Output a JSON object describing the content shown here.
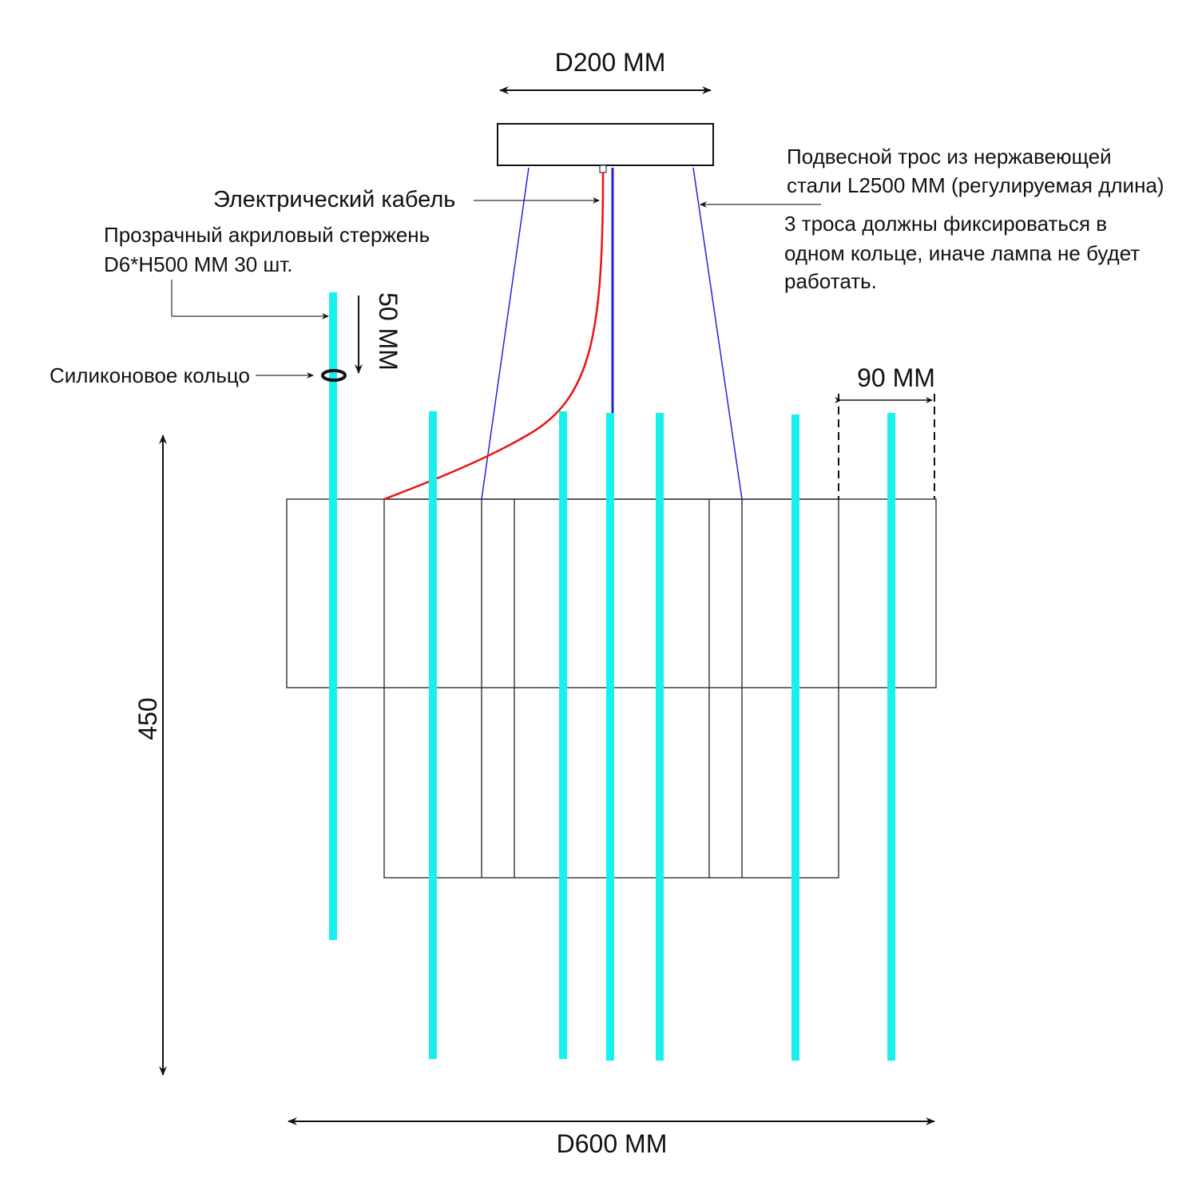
{
  "labels": {
    "top_diameter": "D200 MM",
    "cable": "Электрический  кабель",
    "rod_line1": "Прозрачный акриловый стержень",
    "rod_line2": "D6*H500 MM  30 шт.",
    "ring": "Силиконовое   кольцо",
    "ring_distance": "50 MM",
    "wire_line1": "Подвесной трос из нержавеющей",
    "wire_line2": "стали L2500 MM (регулируемая длина)",
    "note_line1": "3 троса должны фиксироваться в",
    "note_line2": "одном кольце, иначе лампа не будет",
    "note_line3": "работать.",
    "spacing": "90 MM",
    "height": "450",
    "bottom_diameter": "D600 MM"
  },
  "colors": {
    "rod": "#19F0EE",
    "cable": "#EE1111",
    "wire": "#2222DD"
  }
}
